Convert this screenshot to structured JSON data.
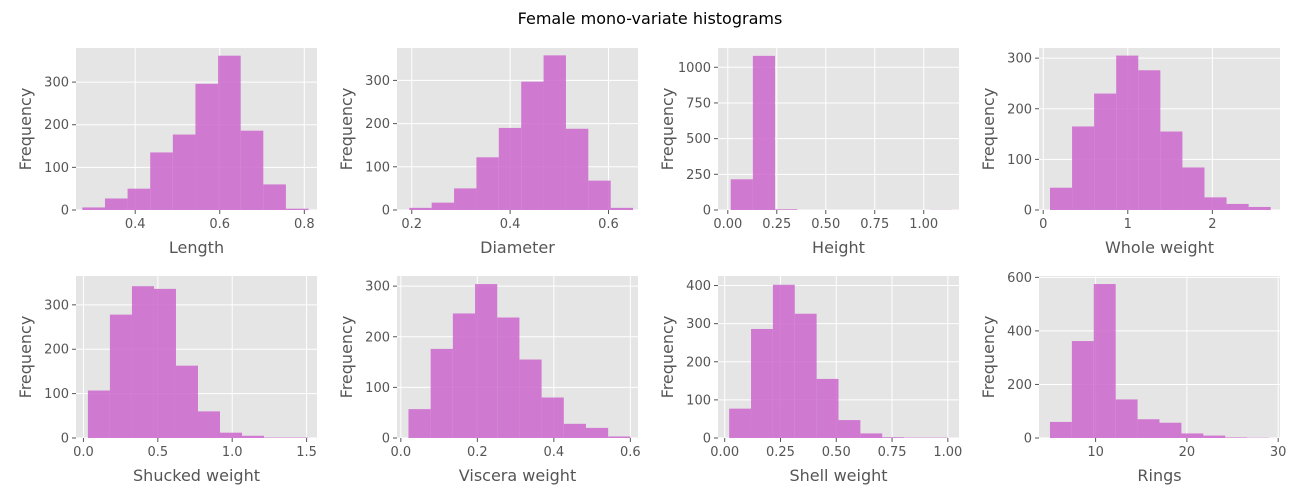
{
  "figure": {
    "title": "Female mono-variate histograms",
    "bar_color": "#cc66cc",
    "panel_bg": "#e5e5e5",
    "grid_color": "#ffffff",
    "text_color": "#555555"
  },
  "chart_data": [
    {
      "type": "bar",
      "xlabel": "Length",
      "ylabel": "Frequency",
      "xlim": [
        0.26,
        0.83
      ],
      "ylim": [
        0,
        380
      ],
      "xticks": [
        0.4,
        0.6,
        0.8
      ],
      "xtick_labels": [
        "0.4",
        "0.6",
        "0.8"
      ],
      "yticks": [
        0,
        100,
        200,
        300
      ],
      "ytick_labels": [
        "0",
        "100",
        "200",
        "300"
      ],
      "bin_edges": [
        0.275,
        0.3285,
        0.382,
        0.4355,
        0.489,
        0.5425,
        0.596,
        0.6495,
        0.703,
        0.7565,
        0.81
      ],
      "values": [
        6,
        27,
        50,
        135,
        177,
        296,
        362,
        186,
        60,
        3
      ]
    },
    {
      "type": "bar",
      "xlabel": "Diameter",
      "ylabel": "Frequency",
      "xlim": [
        0.17,
        0.66
      ],
      "ylim": [
        0,
        375
      ],
      "xticks": [
        0.2,
        0.4,
        0.6
      ],
      "xtick_labels": [
        "0.2",
        "0.4",
        "0.6"
      ],
      "yticks": [
        0,
        100,
        200,
        300
      ],
      "ytick_labels": [
        "0",
        "100",
        "200",
        "300"
      ],
      "bin_edges": [
        0.195,
        0.2405,
        0.286,
        0.3315,
        0.377,
        0.4225,
        0.468,
        0.5135,
        0.559,
        0.6045,
        0.65
      ],
      "values": [
        5,
        17,
        50,
        122,
        190,
        297,
        358,
        188,
        68,
        5
      ]
    },
    {
      "type": "bar",
      "xlabel": "Height",
      "ylabel": "Frequency",
      "xlim": [
        -0.05,
        1.18
      ],
      "ylim": [
        0,
        1135
      ],
      "xticks": [
        0.0,
        0.25,
        0.5,
        0.75,
        1.0
      ],
      "xtick_labels": [
        "0.00",
        "0.25",
        "0.50",
        "0.75",
        "1.00"
      ],
      "yticks": [
        0,
        250,
        500,
        750,
        1000
      ],
      "ytick_labels": [
        "0",
        "250",
        "500",
        "750",
        "1000"
      ],
      "bin_edges": [
        0.015,
        0.128,
        0.241,
        0.354,
        0.467,
        0.58,
        0.693,
        0.806,
        0.919,
        1.032,
        1.145
      ],
      "values": [
        215,
        1080,
        5,
        0,
        0,
        0,
        0,
        0,
        0,
        1
      ]
    },
    {
      "type": "bar",
      "xlabel": "Whole weight",
      "ylabel": "Frequency",
      "xlim": [
        -0.05,
        2.8
      ],
      "ylim": [
        0,
        320
      ],
      "xticks": [
        0,
        1,
        2
      ],
      "xtick_labels": [
        "0",
        "1",
        "2"
      ],
      "yticks": [
        0,
        100,
        200,
        300
      ],
      "ytick_labels": [
        "0",
        "100",
        "200",
        "300"
      ],
      "bin_edges": [
        0.08,
        0.341,
        0.602,
        0.863,
        1.124,
        1.385,
        1.646,
        1.907,
        2.168,
        2.429,
        2.69
      ],
      "values": [
        44,
        165,
        230,
        305,
        276,
        155,
        84,
        25,
        12,
        6
      ]
    },
    {
      "type": "bar",
      "xlabel": "Shucked weight",
      "ylabel": "Frequency",
      "xlim": [
        -0.05,
        1.57
      ],
      "ylim": [
        0,
        365
      ],
      "xticks": [
        0.0,
        0.5,
        1.0,
        1.5
      ],
      "xtick_labels": [
        "0.0",
        "0.5",
        "1.0",
        "1.5"
      ],
      "yticks": [
        0,
        100,
        200,
        300
      ],
      "ytick_labels": [
        "0",
        "100",
        "200",
        "300"
      ],
      "bin_edges": [
        0.03,
        0.178,
        0.326,
        0.474,
        0.622,
        0.77,
        0.918,
        1.066,
        1.214,
        1.362,
        1.51
      ],
      "values": [
        107,
        278,
        342,
        336,
        163,
        60,
        12,
        5,
        1,
        1
      ]
    },
    {
      "type": "bar",
      "xlabel": "Viscera weight",
      "ylabel": "Frequency",
      "xlim": [
        -0.01,
        0.62
      ],
      "ylim": [
        0,
        320
      ],
      "xticks": [
        0.0,
        0.2,
        0.4,
        0.6
      ],
      "xtick_labels": [
        "0.0",
        "0.2",
        "0.4",
        "0.6"
      ],
      "yticks": [
        0,
        100,
        200,
        300
      ],
      "ytick_labels": [
        "0",
        "100",
        "200",
        "300"
      ],
      "bin_edges": [
        0.02,
        0.078,
        0.136,
        0.194,
        0.252,
        0.31,
        0.368,
        0.426,
        0.484,
        0.542,
        0.6
      ],
      "values": [
        57,
        176,
        246,
        304,
        238,
        155,
        80,
        28,
        20,
        3
      ]
    },
    {
      "type": "bar",
      "xlabel": "Shell weight",
      "ylabel": "Frequency",
      "xlim": [
        -0.03,
        1.05
      ],
      "ylim": [
        0,
        425
      ],
      "xticks": [
        0.0,
        0.25,
        0.5,
        0.75,
        1.0
      ],
      "xtick_labels": [
        "0.00",
        "0.25",
        "0.50",
        "0.75",
        "1.00"
      ],
      "yticks": [
        0,
        100,
        200,
        300,
        400
      ],
      "ytick_labels": [
        "0",
        "100",
        "200",
        "300",
        "400"
      ],
      "bin_edges": [
        0.02,
        0.118,
        0.216,
        0.314,
        0.412,
        0.51,
        0.608,
        0.706,
        0.804,
        0.902,
        1.0
      ],
      "values": [
        77,
        286,
        402,
        326,
        155,
        47,
        12,
        2,
        1,
        1
      ]
    },
    {
      "type": "bar",
      "xlabel": "Rings",
      "ylabel": "Frequency",
      "xlim": [
        3.8,
        30.2
      ],
      "ylim": [
        0,
        605
      ],
      "xticks": [
        10,
        20,
        30
      ],
      "xtick_labels": [
        "10",
        "20",
        "30"
      ],
      "yticks": [
        0,
        200,
        400,
        600
      ],
      "ytick_labels": [
        "0",
        "200",
        "400",
        "600"
      ],
      "bin_edges": [
        5.0,
        7.4,
        9.8,
        12.2,
        14.6,
        17.0,
        19.4,
        21.8,
        24.2,
        26.6,
        29.0
      ],
      "values": [
        60,
        362,
        575,
        144,
        70,
        57,
        17,
        9,
        2,
        1
      ]
    }
  ]
}
